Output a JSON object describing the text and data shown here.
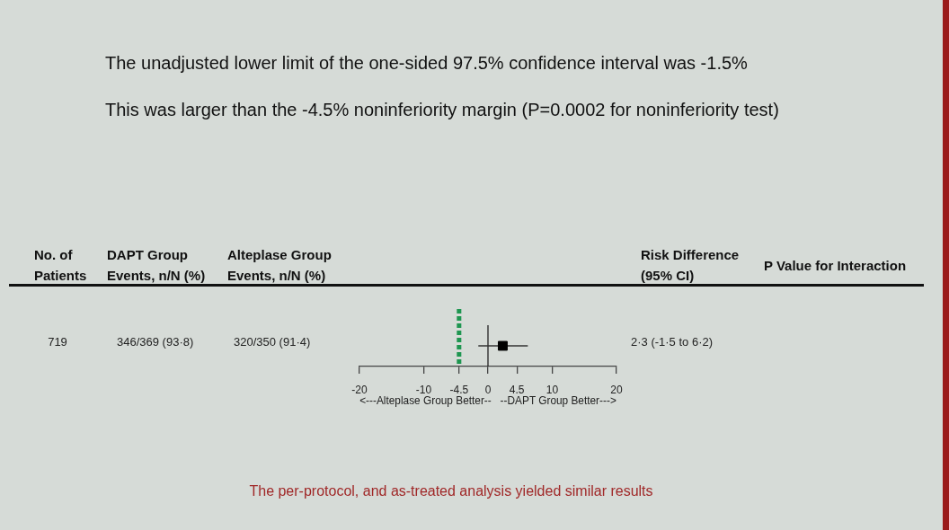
{
  "chart_data": {
    "type": "scatter",
    "orientation": "horizontal",
    "title": "The unadjusted lower limit of the one-sided 97.5% confidence interval was -1.5%",
    "subtitle": "This was larger than the -4.5% noninferiority margin (P=0.0002 for noninferiority test)",
    "xlabel": "<---Alteplase Group Better--   --DAPT Group Better--->",
    "categories": [
      null
    ],
    "values": [
      2.3
    ],
    "errors": [
      [
        -1.5,
        6.2
      ]
    ],
    "color": "#000000",
    "marker": "square",
    "xlim": [
      -20,
      20
    ],
    "xticks": [
      -20,
      -10,
      -4.5,
      0,
      4.5,
      10,
      20
    ],
    "ref_lines": [
      {
        "axis": "x",
        "value": -4.5,
        "color": "#1e9650",
        "line_style": "dotted"
      },
      {
        "axis": "x",
        "value": 0,
        "color": "#222222",
        "line_style": "solid"
      }
    ],
    "annotations": [
      "No. of\nPatients",
      "DAPT Group\nEvents, n/N (%)",
      "Alteplase Group\nEvents, n/N (%)",
      "Risk Difference\n(95% CI)",
      "P Value for Interaction",
      "719",
      "346/369 (93·8)",
      "320/350 (91·4)",
      "2·3 (-1·5 to 6·2)",
      "The per-protocol, and as-treated analysis yielded similar results"
    ]
  }
}
